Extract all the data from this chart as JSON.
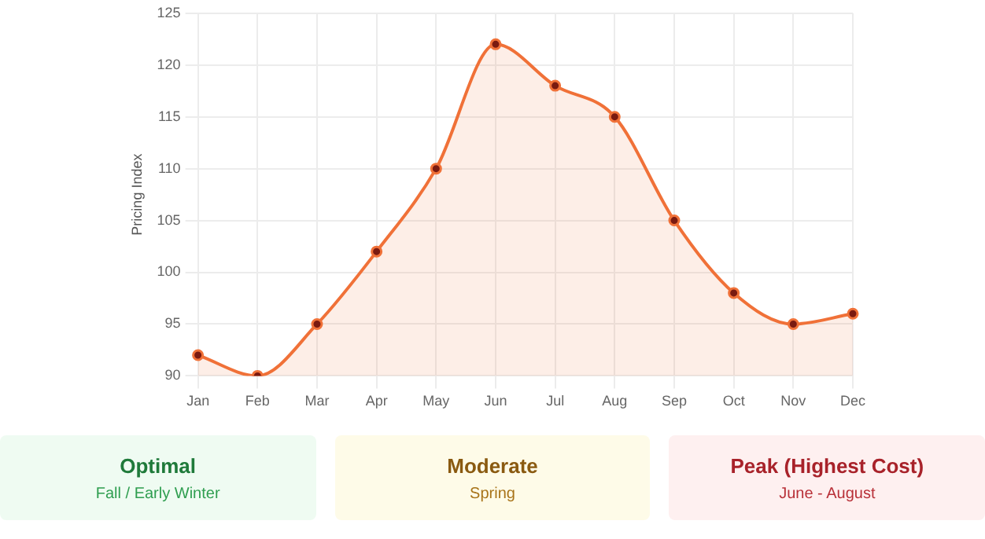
{
  "chart_data": [
    {
      "type": "area",
      "ylabel": "Pricing Index",
      "categories": [
        "Jan",
        "Feb",
        "Mar",
        "Apr",
        "May",
        "Jun",
        "Jul",
        "Aug",
        "Sep",
        "Oct",
        "Nov",
        "Dec"
      ],
      "series": [
        {
          "color": "#f07138",
          "values": [
            92,
            90,
            95,
            102,
            110,
            122,
            118,
            115,
            105,
            98,
            95,
            96
          ]
        }
      ],
      "ylim": [
        90,
        125
      ],
      "yticks": [
        90,
        95,
        100,
        105,
        110,
        115,
        120,
        125
      ],
      "grid": true,
      "legend": false,
      "marker": "circle"
    },
    {
      "type": "other",
      "title": "Optimal",
      "subtitle": "Fall / Early Winter"
    },
    {
      "type": "other",
      "title": "Moderate",
      "subtitle": "Spring"
    },
    {
      "type": "other",
      "title": "Peak (Highest Cost)",
      "subtitle": "June - August"
    }
  ]
}
